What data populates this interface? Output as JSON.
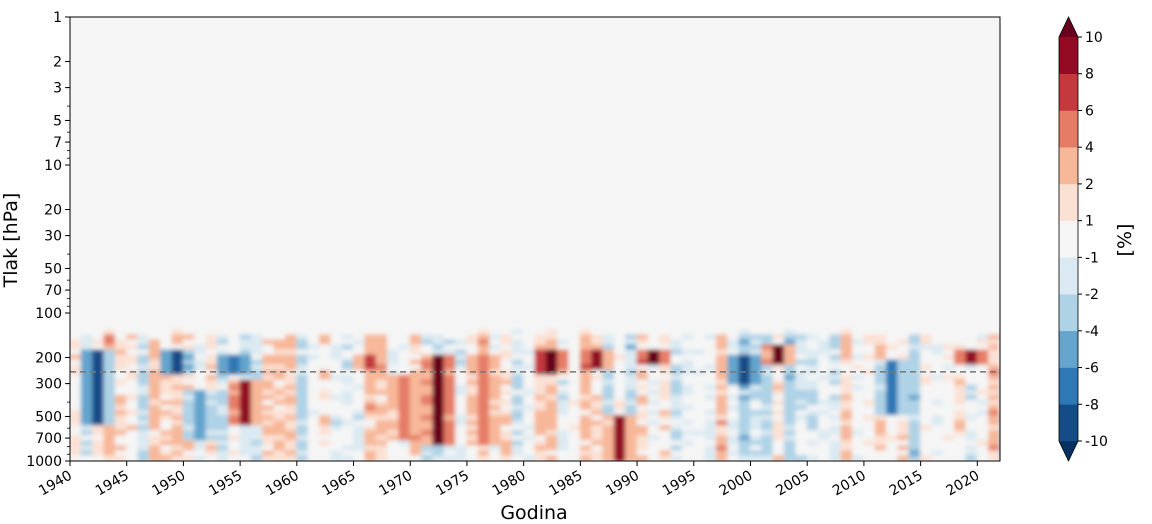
{
  "chart_data": {
    "type": "heatmap",
    "xlabel": "Godina",
    "ylabel": "Tlak [hPa]",
    "xlim": [
      1940,
      2022
    ],
    "ylim": [
      1000,
      1
    ],
    "y_scale": "log",
    "x_ticks": [
      1940,
      1945,
      1950,
      1955,
      1960,
      1965,
      1970,
      1975,
      1980,
      1985,
      1990,
      1995,
      2000,
      2005,
      2010,
      2015,
      2020
    ],
    "x_tick_labels": [
      "1940",
      "1945",
      "1950",
      "1955",
      "1960",
      "1965",
      "1970",
      "1975",
      "1980",
      "1985",
      "1990",
      "1995",
      "2000",
      "2005",
      "2010",
      "2015",
      "2020"
    ],
    "y_ticks": [
      1,
      2,
      3,
      5,
      7,
      10,
      20,
      30,
      50,
      70,
      100,
      200,
      300,
      500,
      700,
      1000
    ],
    "y_tick_labels": [
      "1",
      "2",
      "3",
      "5",
      "7",
      "10",
      "20",
      "30",
      "50",
      "70",
      "100",
      "200",
      "300",
      "500",
      "700",
      "1000"
    ],
    "reference_line": {
      "pressure": 250,
      "style": "dashed",
      "color": "#777777"
    },
    "no_data_above_hpa": 130,
    "colorbar": {
      "label": "[%]",
      "levels": [
        -10,
        -8,
        -6,
        -4,
        -2,
        -1,
        1,
        2,
        4,
        6,
        8,
        10
      ],
      "tick_labels": [
        "-10",
        "-8",
        "-6",
        "-4",
        "-2",
        "-1",
        "1",
        "2",
        "4",
        "6",
        "8",
        "10"
      ],
      "colors": [
        "#053061",
        "#134c87",
        "#2e78b5",
        "#64a4cd",
        "#aed2e6",
        "#dbeaf2",
        "#f5f5f5",
        "#fbe1d4",
        "#f7b799",
        "#e57d66",
        "#c3393d",
        "#930b22",
        "#67001f"
      ],
      "extend": "both"
    },
    "features": [
      {
        "year": 1942,
        "p_top": 180,
        "p_bottom": 600,
        "value": -9
      },
      {
        "year": 1949,
        "p_top": 180,
        "p_bottom": 260,
        "value": -10
      },
      {
        "year": 1951,
        "p_top": 330,
        "p_bottom": 750,
        "value": -6
      },
      {
        "year": 1954,
        "p_top": 190,
        "p_bottom": 260,
        "value": -8
      },
      {
        "year": 1955,
        "p_top": 280,
        "p_bottom": 600,
        "value": 8
      },
      {
        "year": 1966,
        "p_top": 190,
        "p_bottom": 250,
        "value": 6
      },
      {
        "year": 1969,
        "p_top": 270,
        "p_bottom": 750,
        "value": 5
      },
      {
        "year": 1972,
        "p_top": 190,
        "p_bottom": 800,
        "value": 10
      },
      {
        "year": 1976,
        "p_top": 190,
        "p_bottom": 800,
        "value": 5
      },
      {
        "year": 1982,
        "p_top": 180,
        "p_bottom": 260,
        "value": 10
      },
      {
        "year": 1986,
        "p_top": 180,
        "p_bottom": 250,
        "value": 9
      },
      {
        "year": 1988,
        "p_top": 500,
        "p_bottom": 1000,
        "value": 8
      },
      {
        "year": 1991,
        "p_top": 180,
        "p_bottom": 230,
        "value": 10
      },
      {
        "year": 1999,
        "p_top": 190,
        "p_bottom": 300,
        "value": -9
      },
      {
        "year": 2002,
        "p_top": 170,
        "p_bottom": 230,
        "value": 10
      },
      {
        "year": 2012,
        "p_top": 210,
        "p_bottom": 500,
        "value": -7
      },
      {
        "year": 2019,
        "p_top": 180,
        "p_bottom": 230,
        "value": 9
      }
    ]
  }
}
